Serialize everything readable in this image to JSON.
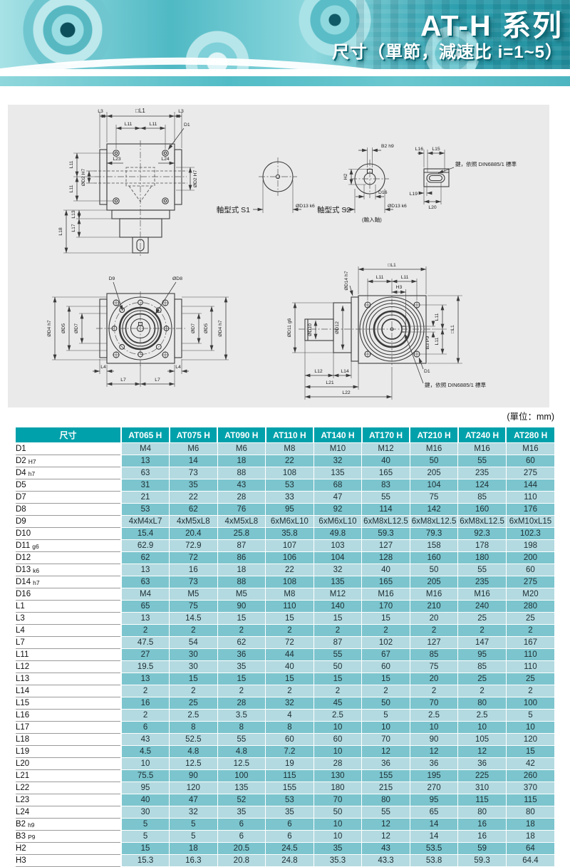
{
  "header": {
    "title": "AT-H 系列",
    "subtitle": "尺寸（單節，減速比 i=1~5）"
  },
  "drw": {
    "L1sq": "□L1",
    "L3": "L3",
    "L11": "L11",
    "D1": "D1",
    "L23": "L23",
    "L24": "L24",
    "D2": "ØD2 H7",
    "L13": "L13",
    "L17": "L17",
    "L18": "L18",
    "S1": "軸型式 S1",
    "S2": "軸型式 S2",
    "input": "(輸入軸)",
    "D13": "ØD13 k6",
    "B2": "B2 h9",
    "H2": "H2",
    "D16": "D16",
    "L15": "L15",
    "L16": "L16",
    "L19": "L19",
    "L20": "L20",
    "keynote": "鍵，依照 DIN6885/1 標準",
    "D9": "D9",
    "D8": "ØD8",
    "D5": "ØD5",
    "D7": "ØD7",
    "D4": "ØD4 h7",
    "L4": "L4",
    "L7": "L7",
    "D14": "ØD14 h7",
    "D12": "ØD12",
    "D10": "ØD10",
    "D11": "ØD11 g6",
    "H3": "H3",
    "L12": "L12",
    "L14": "L14",
    "L21": "L21",
    "L22": "L22",
    "B3": "B3 P9"
  },
  "table": {
    "unit_note": "(單位：mm)",
    "columns": [
      "尺寸",
      "AT065 H",
      "AT075 H",
      "AT090 H",
      "AT110 H",
      "AT140 H",
      "AT170 H",
      "AT210 H",
      "AT240 H",
      "AT280 H"
    ],
    "rows": [
      {
        "label": "D1",
        "suffix": "",
        "values": [
          "M4",
          "M6",
          "M6",
          "M8",
          "M10",
          "M12",
          "M16",
          "M16",
          "M16"
        ]
      },
      {
        "label": "D2",
        "suffix": "H7",
        "values": [
          "13",
          "14",
          "18",
          "22",
          "32",
          "40",
          "50",
          "55",
          "60"
        ]
      },
      {
        "label": "D4",
        "suffix": "h7",
        "values": [
          "63",
          "73",
          "88",
          "108",
          "135",
          "165",
          "205",
          "235",
          "275"
        ]
      },
      {
        "label": "D5",
        "suffix": "",
        "values": [
          "31",
          "35",
          "43",
          "53",
          "68",
          "83",
          "104",
          "124",
          "144"
        ]
      },
      {
        "label": "D7",
        "suffix": "",
        "values": [
          "21",
          "22",
          "28",
          "33",
          "47",
          "55",
          "75",
          "85",
          "110"
        ]
      },
      {
        "label": "D8",
        "suffix": "",
        "values": [
          "53",
          "62",
          "76",
          "95",
          "92",
          "114",
          "142",
          "160",
          "176"
        ]
      },
      {
        "label": "D9",
        "suffix": "",
        "values": [
          "4xM4xL7",
          "4xM5xL8",
          "4xM5xL8",
          "6xM6xL10",
          "6xM6xL10",
          "6xM8xL12.5",
          "6xM8xL12.5",
          "6xM8xL12.5",
          "6xM10xL15"
        ]
      },
      {
        "label": "D10",
        "suffix": "",
        "values": [
          "15.4",
          "20.4",
          "25.8",
          "35.8",
          "49.8",
          "59.3",
          "79.3",
          "92.3",
          "102.3"
        ]
      },
      {
        "label": "D11",
        "suffix": "g6",
        "values": [
          "62.9",
          "72.9",
          "87",
          "107",
          "103",
          "127",
          "158",
          "178",
          "198"
        ]
      },
      {
        "label": "D12",
        "suffix": "",
        "values": [
          "62",
          "72",
          "86",
          "106",
          "104",
          "128",
          "160",
          "180",
          "200"
        ]
      },
      {
        "label": "D13",
        "suffix": "k6",
        "values": [
          "13",
          "16",
          "18",
          "22",
          "32",
          "40",
          "50",
          "55",
          "60"
        ]
      },
      {
        "label": "D14",
        "suffix": "h7",
        "values": [
          "63",
          "73",
          "88",
          "108",
          "135",
          "165",
          "205",
          "235",
          "275"
        ]
      },
      {
        "label": "D16",
        "suffix": "",
        "values": [
          "M4",
          "M5",
          "M5",
          "M8",
          "M12",
          "M16",
          "M16",
          "M16",
          "M20"
        ]
      },
      {
        "label": "L1",
        "suffix": "",
        "values": [
          "65",
          "75",
          "90",
          "110",
          "140",
          "170",
          "210",
          "240",
          "280"
        ]
      },
      {
        "label": "L3",
        "suffix": "",
        "values": [
          "13",
          "14.5",
          "15",
          "15",
          "15",
          "15",
          "20",
          "25",
          "25"
        ]
      },
      {
        "label": "L4",
        "suffix": "",
        "values": [
          "2",
          "2",
          "2",
          "2",
          "2",
          "2",
          "2",
          "2",
          "2"
        ]
      },
      {
        "label": "L7",
        "suffix": "",
        "values": [
          "47.5",
          "54",
          "62",
          "72",
          "87",
          "102",
          "127",
          "147",
          "167"
        ]
      },
      {
        "label": "L11",
        "suffix": "",
        "values": [
          "27",
          "30",
          "36",
          "44",
          "55",
          "67",
          "85",
          "95",
          "110"
        ]
      },
      {
        "label": "L12",
        "suffix": "",
        "values": [
          "19.5",
          "30",
          "35",
          "40",
          "50",
          "60",
          "75",
          "85",
          "110"
        ]
      },
      {
        "label": "L13",
        "suffix": "",
        "values": [
          "13",
          "15",
          "15",
          "15",
          "15",
          "15",
          "20",
          "25",
          "25"
        ]
      },
      {
        "label": "L14",
        "suffix": "",
        "values": [
          "2",
          "2",
          "2",
          "2",
          "2",
          "2",
          "2",
          "2",
          "2"
        ]
      },
      {
        "label": "L15",
        "suffix": "",
        "values": [
          "16",
          "25",
          "28",
          "32",
          "45",
          "50",
          "70",
          "80",
          "100"
        ]
      },
      {
        "label": "L16",
        "suffix": "",
        "values": [
          "2",
          "2.5",
          "3.5",
          "4",
          "2.5",
          "5",
          "2.5",
          "2.5",
          "5"
        ]
      },
      {
        "label": "L17",
        "suffix": "",
        "values": [
          "6",
          "8",
          "8",
          "8",
          "10",
          "10",
          "10",
          "10",
          "10"
        ]
      },
      {
        "label": "L18",
        "suffix": "",
        "values": [
          "43",
          "52.5",
          "55",
          "60",
          "60",
          "70",
          "90",
          "105",
          "120"
        ]
      },
      {
        "label": "L19",
        "suffix": "",
        "values": [
          "4.5",
          "4.8",
          "4.8",
          "7.2",
          "10",
          "12",
          "12",
          "12",
          "15"
        ]
      },
      {
        "label": "L20",
        "suffix": "",
        "values": [
          "10",
          "12.5",
          "12.5",
          "19",
          "28",
          "36",
          "36",
          "36",
          "42"
        ]
      },
      {
        "label": "L21",
        "suffix": "",
        "values": [
          "75.5",
          "90",
          "100",
          "115",
          "130",
          "155",
          "195",
          "225",
          "260"
        ]
      },
      {
        "label": "L22",
        "suffix": "",
        "values": [
          "95",
          "120",
          "135",
          "155",
          "180",
          "215",
          "270",
          "310",
          "370"
        ]
      },
      {
        "label": "L23",
        "suffix": "",
        "values": [
          "40",
          "47",
          "52",
          "53",
          "70",
          "80",
          "95",
          "115",
          "115"
        ]
      },
      {
        "label": "L24",
        "suffix": "",
        "values": [
          "30",
          "32",
          "35",
          "35",
          "50",
          "55",
          "65",
          "80",
          "80"
        ]
      },
      {
        "label": "B2",
        "suffix": "h9",
        "values": [
          "5",
          "5",
          "6",
          "6",
          "10",
          "12",
          "14",
          "16",
          "18"
        ]
      },
      {
        "label": "B3",
        "suffix": "P9",
        "values": [
          "5",
          "5",
          "6",
          "6",
          "10",
          "12",
          "14",
          "16",
          "18"
        ]
      },
      {
        "label": "H2",
        "suffix": "",
        "values": [
          "15",
          "18",
          "20.5",
          "24.5",
          "35",
          "43",
          "53.5",
          "59",
          "64"
        ]
      },
      {
        "label": "H3",
        "suffix": "",
        "values": [
          "15.3",
          "16.3",
          "20.8",
          "24.8",
          "35.3",
          "43.3",
          "53.8",
          "59.3",
          "64.4"
        ]
      }
    ]
  },
  "colors": {
    "accent": "#00a1ab",
    "row_light": "#b3dae0",
    "row_dark": "#7cc5ce"
  }
}
